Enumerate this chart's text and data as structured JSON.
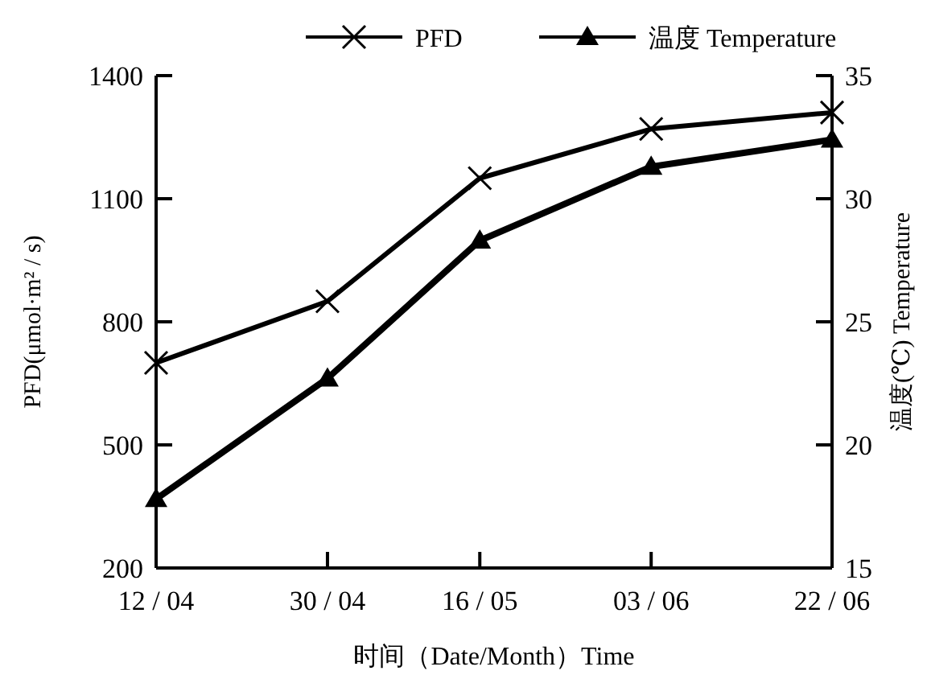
{
  "chart_data": {
    "type": "line",
    "x": [
      "--04-12",
      "--04-30",
      "--05-16",
      "--06-03",
      "--06-22"
    ],
    "xlabel": "时间（Date/Month）Time",
    "ylabel": "PFD(μmol·m² / s)",
    "y2label": "温度(℃) Temperature",
    "series": [
      {
        "name": "PFD",
        "color": "#000000",
        "marker": "cross",
        "values": [
          700,
          850,
          1150,
          1270,
          1310
        ]
      },
      {
        "name": "温度 Temperature",
        "color": "#000000",
        "marker": "triangle",
        "axis": "y2",
        "values": [
          17.8,
          22.7,
          28.3,
          31.3,
          32.4
        ]
      }
    ],
    "xlim": [
      "--04-12",
      "--06-22"
    ],
    "xticks": [
      {
        "value": "--04-12",
        "label": "12 / 04"
      },
      {
        "value": "--04-30",
        "label": "30 / 04"
      },
      {
        "value": "--05-16",
        "label": "16 / 05"
      },
      {
        "value": "--06-03",
        "label": "03 / 06"
      },
      {
        "value": "--06-22",
        "label": "22 / 06"
      }
    ],
    "ylim": [
      200,
      1400
    ],
    "yticks": [
      200,
      500,
      800,
      1100,
      1400
    ],
    "y2lim": [
      15,
      35
    ],
    "y2ticks": [
      15,
      20,
      25,
      30,
      35
    ],
    "legend": "top right",
    "grid": false,
    "line_style": "solid"
  }
}
